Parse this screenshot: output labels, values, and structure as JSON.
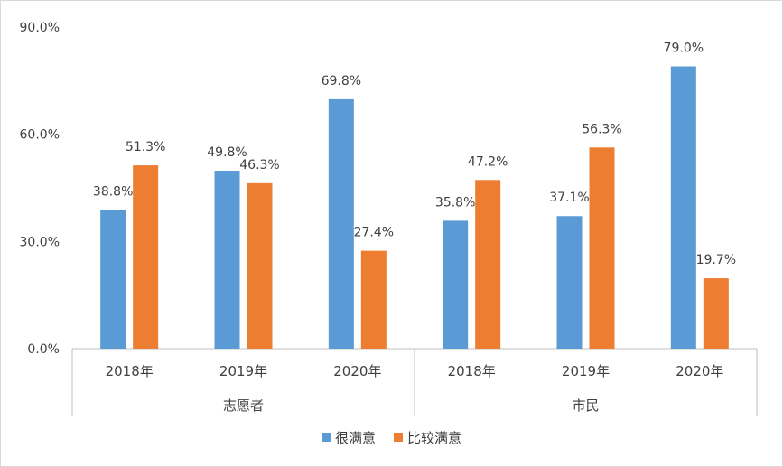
{
  "chart_data": {
    "type": "bar",
    "groups": [
      {
        "name": "志愿者",
        "categories": [
          "2018年",
          "2019年",
          "2020年"
        ]
      },
      {
        "name": "市民",
        "categories": [
          "2018年",
          "2019年",
          "2020年"
        ]
      }
    ],
    "series": [
      {
        "name": "很满意",
        "color": "#5B9BD5",
        "values": [
          38.8,
          49.8,
          69.8,
          35.8,
          37.1,
          79.0
        ],
        "labels": [
          "38.8%",
          "49.8%",
          "69.8%",
          "35.8%",
          "37.1%",
          "79.0%"
        ]
      },
      {
        "name": "比较满意",
        "color": "#ED7D31",
        "values": [
          51.3,
          46.3,
          27.4,
          47.2,
          56.3,
          19.7
        ],
        "labels": [
          "51.3%",
          "46.3%",
          "27.4%",
          "47.2%",
          "56.3%",
          "19.7%"
        ]
      }
    ],
    "y_ticks": [
      0,
      30,
      60,
      90
    ],
    "y_tick_labels": [
      "0.0%",
      "30.0%",
      "60.0%",
      "90.0%"
    ],
    "ylim": [
      0,
      90
    ],
    "title": "",
    "xlabel": "",
    "ylabel": "",
    "grid": false,
    "legend_position": "bottom"
  }
}
